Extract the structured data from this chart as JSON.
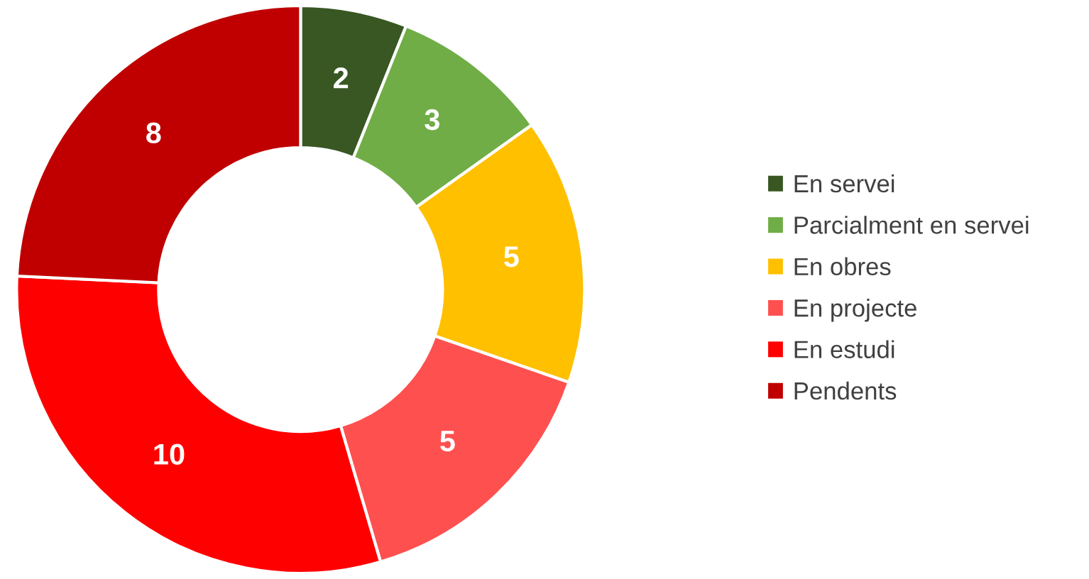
{
  "chart_data": {
    "type": "donut",
    "categories": [
      "En servei",
      "Parcialment en servei",
      "En obres",
      "En projecte",
      "En estudi",
      "Pendents"
    ],
    "values": [
      2,
      3,
      5,
      5,
      10,
      8
    ],
    "colors": [
      "#385723",
      "#70ad47",
      "#ffc000",
      "#ff5050",
      "#ff0000",
      "#c00000"
    ],
    "data_labels": true,
    "legend": "right"
  }
}
